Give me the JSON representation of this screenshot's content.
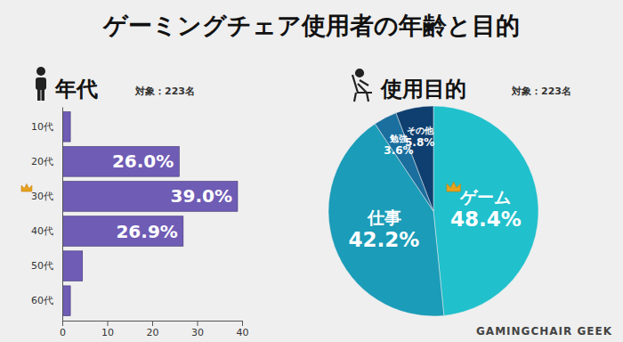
{
  "title": "ゲーミングチェア使用者の年齢と目的",
  "annotations": [
    "GAMINGCHAIR GEEK"
  ],
  "chart_data": [
    {
      "type": "bar",
      "orientation": "horizontal",
      "title": "年代",
      "subtitle": "対象：223名",
      "categories": [
        "10代",
        "20代",
        "30代",
        "40代",
        "50代",
        "60代"
      ],
      "values": [
        1.8,
        26.0,
        39.0,
        26.9,
        4.5,
        1.8
      ],
      "value_labels": [
        null,
        "26.0%",
        "39.0%",
        "26.9%",
        null,
        null
      ],
      "data_labels": true,
      "color": "#6f5cb5",
      "xlim": [
        0,
        40
      ],
      "xticks": [
        0,
        10,
        20,
        30,
        40
      ],
      "grid": false
    },
    {
      "type": "pie",
      "title": "使用目的",
      "subtitle": "対象：223名",
      "categories": [
        "ゲーム",
        "仕事",
        "勉強",
        "その他"
      ],
      "values": [
        48.4,
        42.2,
        3.6,
        5.8
      ],
      "value_labels": [
        "48.4%",
        "42.2%",
        "3.6%",
        "5.8%"
      ],
      "data_labels": true,
      "colors": [
        "#20c0cc",
        "#1b9cb8",
        "#1b6f9f",
        "#0e3f70"
      ]
    }
  ]
}
